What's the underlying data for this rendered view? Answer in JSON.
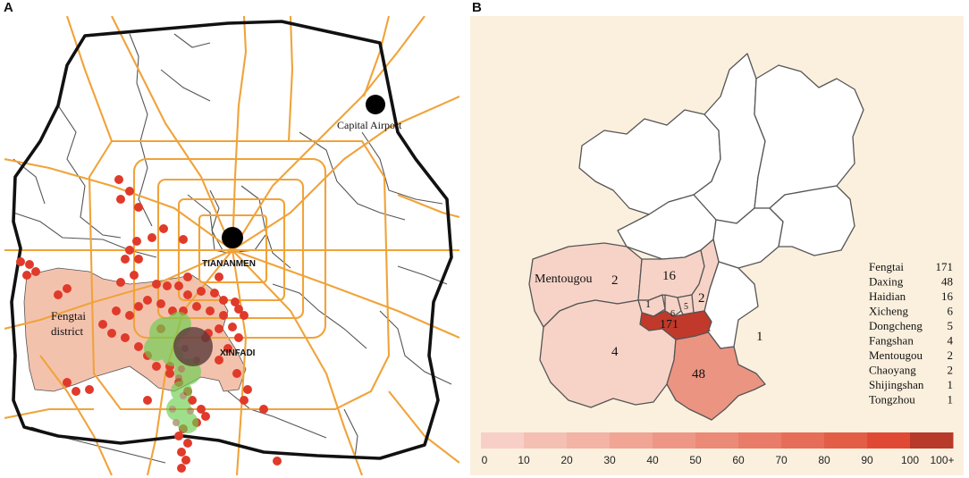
{
  "panels": {
    "a": {
      "letter": "A",
      "labels": {
        "capital_airport": "Capital Airport",
        "tiananmen": "TIANANMEN",
        "fengtai_line1": "Fengtai",
        "fengtai_line2": "district",
        "xinfadi": "XINFADI"
      },
      "colors": {
        "roads": "#f0a33a",
        "district_boundary": "#555555",
        "outer_boundary": "#111111",
        "fengtai_fill": "#f3c2ad",
        "case_points": "#e03a2a",
        "clusters": "#6ccf4f",
        "xinfadi_marker": "#5a3a3a"
      }
    },
    "b": {
      "letter": "B",
      "map_labels": {
        "mentougou": "Mentougou",
        "mentougou_count": "2",
        "haidian_count": "16",
        "chaoyang_count": "2",
        "shijingshan_count": "1",
        "dongcheng_count": "5",
        "xicheng_count": "6",
        "fengtai_count": "171",
        "fangshan_count": "4",
        "daxing_count": "48",
        "tongzhou_count": "1"
      },
      "legend": [
        {
          "name": "Fengtai",
          "value": "171"
        },
        {
          "name": "Daxing",
          "value": "48"
        },
        {
          "name": "Haidian",
          "value": "16"
        },
        {
          "name": "Xicheng",
          "value": "6"
        },
        {
          "name": "Dongcheng",
          "value": "5"
        },
        {
          "name": "Fangshan",
          "value": "4"
        },
        {
          "name": "Mentougou",
          "value": "2"
        },
        {
          "name": "Chaoyang",
          "value": "2"
        },
        {
          "name": "Shijingshan",
          "value": "1"
        },
        {
          "name": "Tongzhou",
          "value": "1"
        }
      ],
      "scale": {
        "labels": [
          "0",
          "10",
          "20",
          "30",
          "40",
          "50",
          "60",
          "70",
          "80",
          "90",
          "100",
          "100+"
        ],
        "colors": [
          "#f7cfc6",
          "#f5c0b4",
          "#f3b3a5",
          "#f0a595",
          "#ee9786",
          "#eb8a77",
          "#e97c68",
          "#e66e58",
          "#e35e46",
          "#e04a34",
          "#b83a2a"
        ]
      },
      "colors": {
        "background": "#fbf0de",
        "unaffected": "#ffffff",
        "fengtai": "#c0392b",
        "daxing": "#eb9482",
        "low": "#f7d3c7",
        "border": "#555555"
      }
    }
  }
}
